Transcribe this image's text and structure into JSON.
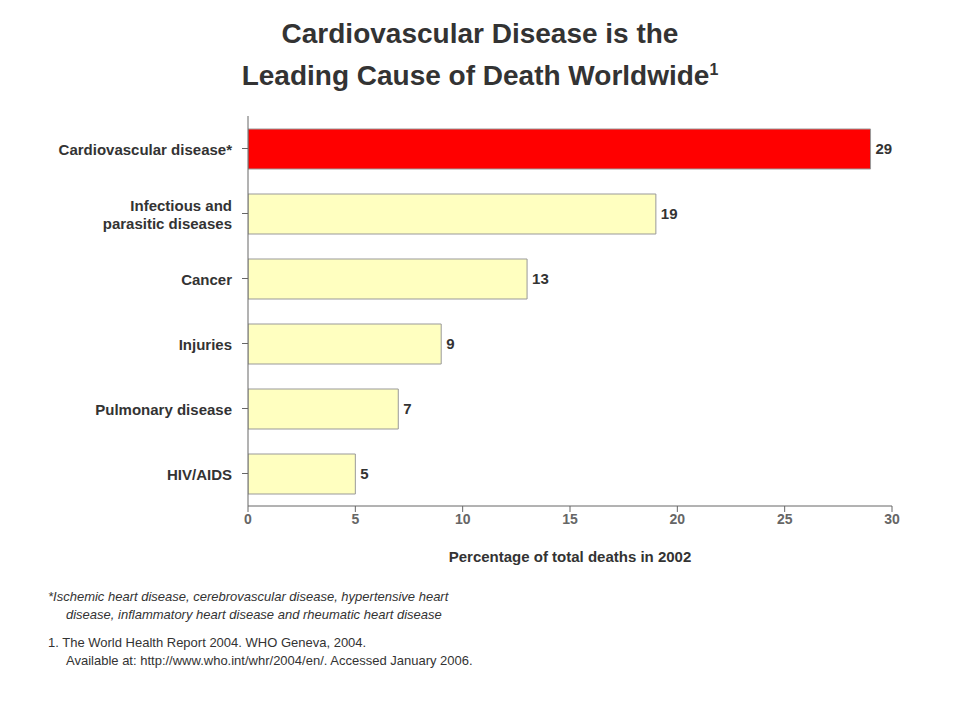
{
  "chart_data": {
    "type": "bar",
    "title": "Cardiovascular Disease is the\nLeading Cause of Death Worldwide",
    "annotations": [
      "1",
      "*Ischemic heart disease, cerebrovascular disease, hypertensive heart",
      "disease, inflammatory heart disease and rheumatic heart disease",
      "1. The World Health Report 2004. WHO Geneva, 2004.",
      "Available at: http://www.who.int/whr/2004/en/. Accessed January 2006."
    ],
    "categories": [
      "Cardiovascular disease*",
      "Infectious and\nparasitic diseases",
      "Cancer",
      "Injuries",
      "Pulmonary disease",
      "HIV/AIDS"
    ],
    "values": [
      29,
      19,
      13,
      9,
      7,
      5
    ],
    "colors": [
      "#FF0000",
      "#FFFFC0",
      "#FFFFC0",
      "#FFFFC0",
      "#FFFFC0",
      "#FFFFC0"
    ],
    "orientation": "horizontal",
    "xlabel": "Percentage of total deaths in 2002",
    "xlim": [
      0,
      30
    ],
    "xticks": [
      0,
      5,
      10,
      15,
      20,
      25,
      30
    ],
    "grid": false,
    "data_labels": true
  }
}
